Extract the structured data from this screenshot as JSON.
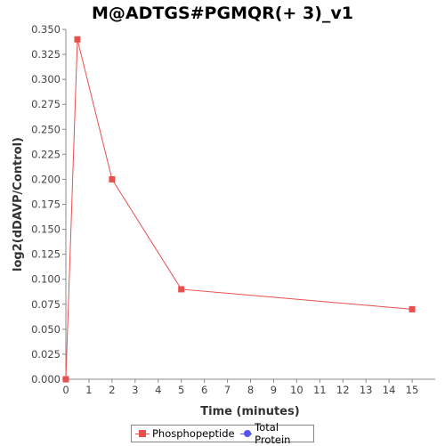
{
  "chart_data": {
    "type": "line",
    "title": "M@ADTGS#PGMQR(+ 3)_v1",
    "xlabel": "Time (minutes)",
    "ylabel": "log2(dDAVP/Control)",
    "xlim": [
      0,
      16
    ],
    "ylim": [
      0,
      0.35
    ],
    "x_ticks": [
      "0",
      "1",
      "2",
      "3",
      "4",
      "5",
      "6",
      "7",
      "8",
      "9",
      "10",
      "11",
      "12",
      "13",
      "14",
      "15"
    ],
    "y_ticks": [
      "0.000",
      "0.025",
      "0.050",
      "0.075",
      "0.100",
      "0.125",
      "0.150",
      "0.175",
      "0.200",
      "0.225",
      "0.250",
      "0.275",
      "0.300",
      "0.325",
      "0.350"
    ],
    "grid": false,
    "legend_position": "bottom",
    "series": [
      {
        "name": "Phosphopeptide",
        "color": "#e8504f",
        "marker": "square",
        "points": [
          {
            "x": 0,
            "y": 0.0
          },
          {
            "x": 0.5,
            "y": 0.34
          },
          {
            "x": 2,
            "y": 0.2
          },
          {
            "x": 5,
            "y": 0.09
          },
          {
            "x": 15,
            "y": 0.07
          }
        ]
      },
      {
        "name": "Total Protein",
        "color": "#5555ee",
        "marker": "circle",
        "points": []
      }
    ]
  }
}
